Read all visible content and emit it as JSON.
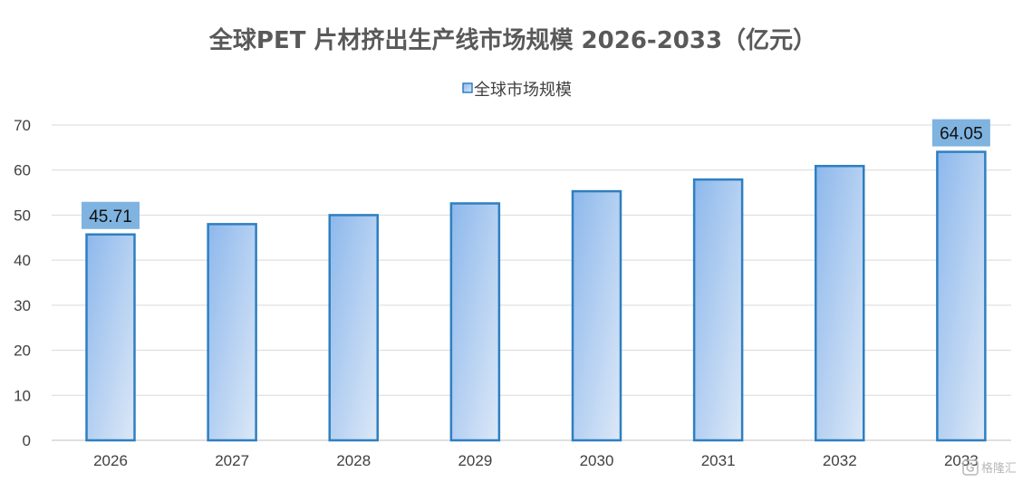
{
  "chart_data": {
    "type": "bar",
    "title": "全球PET 片材挤出生产线市场规模 2026-2033（亿元）",
    "xlabel": "",
    "ylabel": "",
    "categories": [
      "2026",
      "2027",
      "2028",
      "2029",
      "2030",
      "2031",
      "2032",
      "2033"
    ],
    "series": [
      {
        "name": "全球市场规模",
        "values": [
          45.71,
          48.0,
          50.0,
          52.6,
          55.3,
          57.9,
          60.9,
          64.05
        ]
      }
    ],
    "data_labels": [
      {
        "index": 0,
        "text": "45.71"
      },
      {
        "index": 7,
        "text": "64.05"
      }
    ],
    "ylim": [
      0,
      70
    ],
    "yticks": [
      0,
      10,
      20,
      30,
      40,
      50,
      60,
      70
    ],
    "grid": true,
    "legend": "top-center",
    "colors": {
      "bar_fill_top": "#8db8ec",
      "bar_fill_bottom": "#dce8f7",
      "bar_stroke": "#2e7fc1",
      "label_bg": "#7fb3e0",
      "grid": "#d9d9d9",
      "axis": "#bfbfbf"
    }
  },
  "watermark": {
    "text": "格隆汇",
    "icon": "logo-g-icon"
  }
}
